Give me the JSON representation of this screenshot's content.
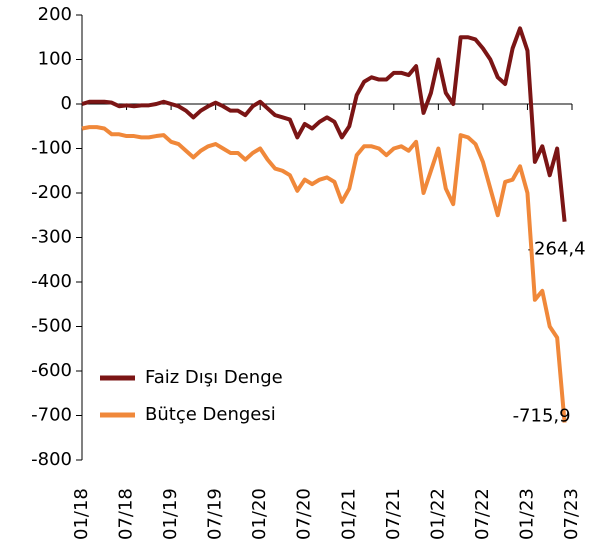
{
  "chart_data": {
    "type": "line",
    "categories": [
      "01/18",
      null,
      null,
      null,
      null,
      null,
      "07/18",
      null,
      null,
      null,
      null,
      null,
      "01/19",
      null,
      null,
      null,
      null,
      null,
      "07/19",
      null,
      null,
      null,
      null,
      null,
      "01/20",
      null,
      null,
      null,
      null,
      null,
      "07/20",
      null,
      null,
      null,
      null,
      null,
      "01/21",
      null,
      null,
      null,
      null,
      null,
      "07/21",
      null,
      null,
      null,
      null,
      null,
      "01/22",
      null,
      null,
      null,
      null,
      null,
      "07/22",
      null,
      null,
      null,
      null,
      null,
      "01/23",
      null,
      null,
      null,
      null,
      null,
      "07/23"
    ],
    "series": [
      {
        "name": "Faiz Dışı Denge",
        "color": "#7b1515",
        "values": [
          0,
          5,
          5,
          5,
          3,
          -5,
          -3,
          -5,
          -3,
          -3,
          0,
          5,
          0,
          -5,
          -15,
          -30,
          -15,
          -5,
          3,
          -5,
          -15,
          -15,
          -25,
          -5,
          5,
          -10,
          -25,
          -30,
          -35,
          -75,
          -45,
          -55,
          -40,
          -30,
          -40,
          -75,
          -50,
          20,
          50,
          60,
          55,
          55,
          70,
          70,
          65,
          85,
          -20,
          25,
          100,
          25,
          0,
          150,
          150,
          145,
          125,
          100,
          60,
          45,
          125,
          170,
          120,
          -130,
          -95,
          -160,
          -100,
          -264.4,
          null
        ],
        "value_labels": [
          null,
          null,
          null,
          null,
          null,
          null,
          null,
          null,
          null,
          null,
          null,
          null,
          null,
          null,
          null,
          null,
          null,
          null,
          null,
          null,
          null,
          null,
          null,
          null,
          null,
          null,
          null,
          null,
          null,
          null,
          null,
          null,
          null,
          null,
          null,
          null,
          null,
          null,
          null,
          null,
          null,
          null,
          null,
          null,
          null,
          null,
          null,
          null,
          null,
          null,
          null,
          null,
          null,
          null,
          null,
          null,
          null,
          null,
          null,
          null,
          null,
          null,
          null,
          null,
          null,
          "-264,4",
          null
        ]
      },
      {
        "name": "Bütçe Dengesi",
        "color": "#f0883a",
        "values": [
          -55,
          -52,
          -52,
          -55,
          -68,
          -68,
          -72,
          -72,
          -75,
          -75,
          -72,
          -70,
          -85,
          -90,
          -105,
          -120,
          -105,
          -95,
          -90,
          -100,
          -110,
          -110,
          -125,
          -110,
          -100,
          -125,
          -145,
          -150,
          -160,
          -195,
          -170,
          -180,
          -170,
          -165,
          -175,
          -220,
          -190,
          -115,
          -95,
          -95,
          -100,
          -115,
          -100,
          -95,
          -105,
          -85,
          -200,
          -150,
          -100,
          -190,
          -225,
          -70,
          -75,
          -90,
          -130,
          -190,
          -250,
          -175,
          -170,
          -140,
          -200,
          -440,
          -420,
          -500,
          -525,
          -715.9,
          null
        ],
        "value_labels": [
          null,
          null,
          null,
          null,
          null,
          null,
          null,
          null,
          null,
          null,
          null,
          null,
          null,
          null,
          null,
          null,
          null,
          null,
          null,
          null,
          null,
          null,
          null,
          null,
          null,
          null,
          null,
          null,
          null,
          null,
          null,
          null,
          null,
          null,
          null,
          null,
          null,
          null,
          null,
          null,
          null,
          null,
          null,
          null,
          null,
          null,
          null,
          null,
          null,
          null,
          null,
          null,
          null,
          null,
          null,
          null,
          null,
          null,
          null,
          null,
          null,
          null,
          null,
          null,
          null,
          "-715,9",
          null
        ]
      }
    ],
    "ylim": [
      -800,
      200
    ],
    "yticks": [
      -800,
      -700,
      -600,
      -500,
      -400,
      -300,
      -200,
      -100,
      0,
      100,
      200
    ],
    "legend": "lower left"
  }
}
